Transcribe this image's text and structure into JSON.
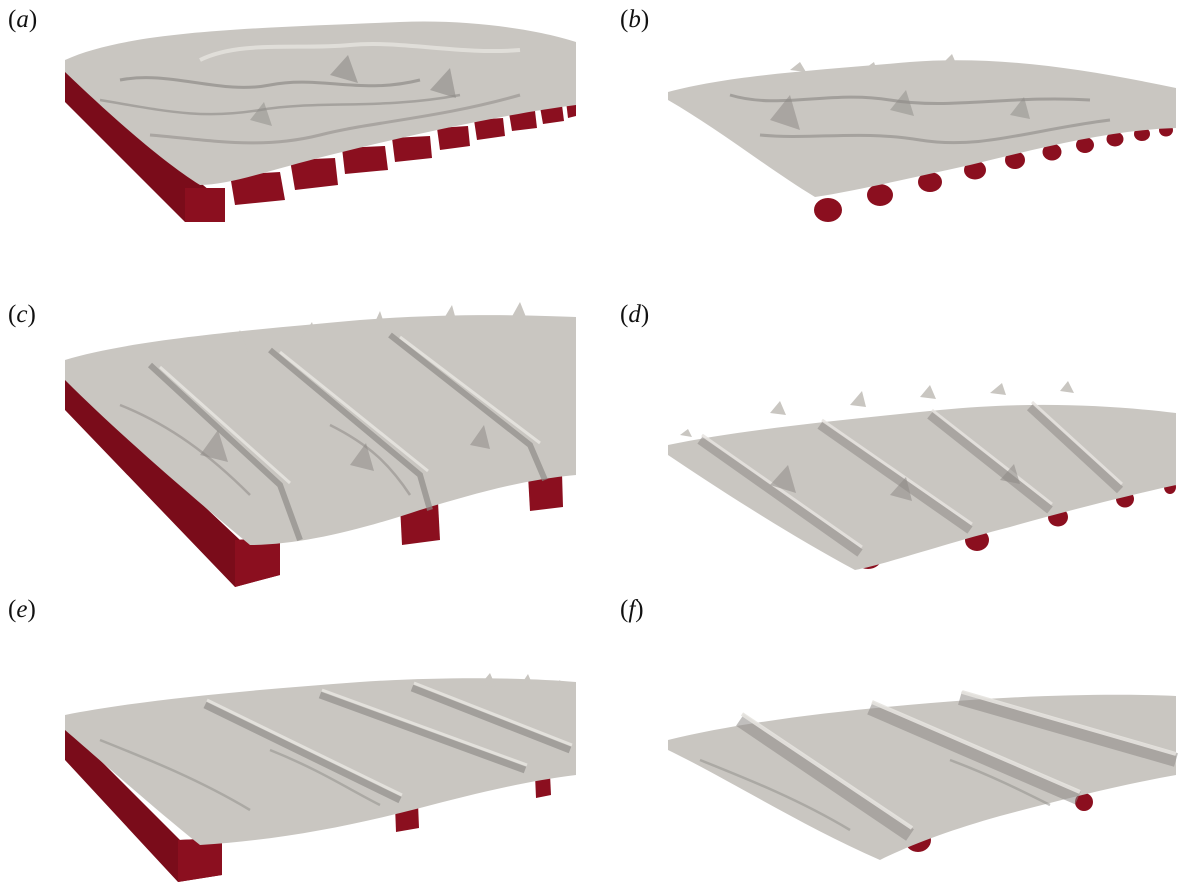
{
  "figure": {
    "panels": [
      {
        "id": "a",
        "open": "(",
        "letter": "a",
        "close": ")",
        "element_shape": "square-bar",
        "spacing": "dense"
      },
      {
        "id": "b",
        "open": "(",
        "letter": "b",
        "close": ")",
        "element_shape": "cylinder",
        "spacing": "dense"
      },
      {
        "id": "c",
        "open": "(",
        "letter": "c",
        "close": ")",
        "element_shape": "square-bar",
        "spacing": "sparse"
      },
      {
        "id": "d",
        "open": "(",
        "letter": "d",
        "close": ")",
        "element_shape": "cylinder",
        "spacing": "medium"
      },
      {
        "id": "e",
        "open": "(",
        "letter": "e",
        "close": ")",
        "element_shape": "square-bar",
        "spacing": "sparse"
      },
      {
        "id": "f",
        "open": "(",
        "letter": "f",
        "close": ")",
        "element_shape": "cylinder",
        "spacing": "sparse"
      }
    ],
    "colors": {
      "roughness_element": "#8b0f1f",
      "roughness_element_dark": "#5e0814",
      "roughness_element_light": "#a81a2c",
      "isosurface": "#c9c6c1",
      "isosurface_shadow": "#8e8b87",
      "isosurface_highlight": "#e6e3df"
    }
  }
}
